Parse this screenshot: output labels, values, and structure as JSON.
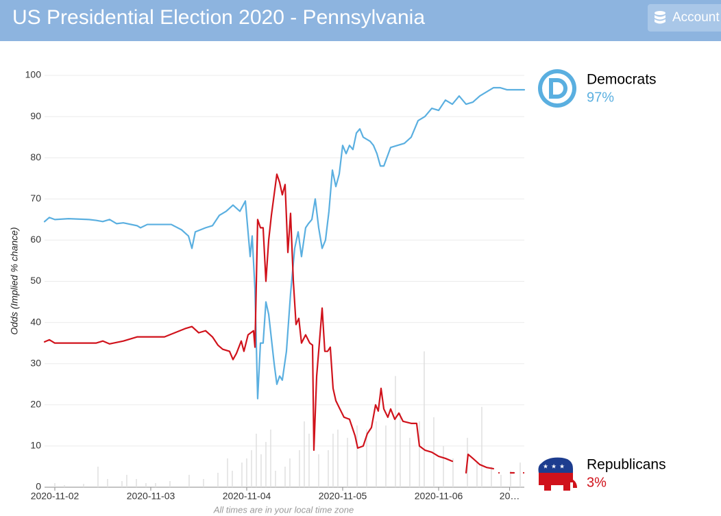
{
  "header": {
    "title": "US Presidential Election 2020 - Pennsylvania",
    "account": "Account"
  },
  "chart_data": {
    "type": "line",
    "ylabel": "Odds (Implied % chance)",
    "note": "All times are in your local time zone",
    "xlim": [
      -0.107,
      4.893
    ],
    "xticks": [
      {
        "value": 0,
        "label": "2020-11-02"
      },
      {
        "value": 1,
        "label": "2020-11-03"
      },
      {
        "value": 2,
        "label": "2020-11-04"
      },
      {
        "value": 3,
        "label": "2020-11-05"
      },
      {
        "value": 4,
        "label": "2020-11-06"
      },
      {
        "value": 4.74,
        "label": "20…"
      }
    ],
    "ylim": [
      0,
      100
    ],
    "yticks": [
      0,
      10,
      20,
      30,
      40,
      50,
      60,
      70,
      80,
      90,
      100
    ],
    "grid": true,
    "series": [
      {
        "name": "Democrats",
        "color": "#5aafe0",
        "current": "97%",
        "x": [
          -0.107,
          -0.057,
          0,
          0.143,
          0.357,
          0.429,
          0.5,
          0.571,
          0.643,
          0.714,
          0.857,
          0.893,
          0.964,
          1.214,
          1.321,
          1.393,
          1.429,
          1.464,
          1.571,
          1.643,
          1.714,
          1.786,
          1.857,
          1.929,
          1.986,
          2.036,
          2.057,
          2.086,
          2.114,
          2.143,
          2.171,
          2.2,
          2.229,
          2.286,
          2.314,
          2.343,
          2.371,
          2.414,
          2.457,
          2.5,
          2.536,
          2.571,
          2.614,
          2.643,
          2.679,
          2.714,
          2.75,
          2.786,
          2.821,
          2.857,
          2.893,
          2.929,
          2.964,
          3,
          3.036,
          3.071,
          3.107,
          3.143,
          3.179,
          3.214,
          3.25,
          3.286,
          3.321,
          3.357,
          3.393,
          3.429,
          3.5,
          3.571,
          3.643,
          3.714,
          3.786,
          3.857,
          3.929,
          4,
          4.071,
          4.143,
          4.214,
          4.286,
          4.357,
          4.429,
          4.5,
          4.571,
          4.643,
          4.714,
          4.893
        ],
        "values": [
          64.5,
          65.5,
          65,
          65.2,
          65,
          64.8,
          64.5,
          65,
          64,
          64.2,
          63.5,
          63,
          63.8,
          63.8,
          62.5,
          61,
          58,
          62,
          63,
          63.5,
          66,
          67,
          68.5,
          67,
          69.5,
          56,
          61,
          48,
          21.5,
          35,
          35,
          45,
          42,
          30,
          25,
          27,
          26,
          33,
          47,
          58,
          62,
          56,
          63,
          64,
          65,
          70,
          63,
          58,
          60,
          67,
          77,
          73,
          76,
          83,
          81,
          83,
          82,
          86,
          87,
          85,
          84.5,
          84,
          83,
          81,
          78,
          78,
          82.5,
          83,
          83.5,
          85,
          89,
          90,
          92,
          91.5,
          94,
          93,
          95,
          93,
          93.5,
          95,
          96,
          97,
          97,
          96.5,
          96.5
        ]
      },
      {
        "name": "Republicans",
        "color": "#d0121b",
        "current": "3%",
        "x": [
          -0.107,
          -0.057,
          0,
          0.143,
          0.429,
          0.5,
          0.571,
          0.714,
          0.857,
          0.929,
          1,
          1.143,
          1.25,
          1.357,
          1.429,
          1.5,
          1.571,
          1.643,
          1.7,
          1.75,
          1.821,
          1.857,
          1.893,
          1.943,
          1.971,
          2.014,
          2.071,
          2.086,
          2.114,
          2.143,
          2.171,
          2.2,
          2.229,
          2.257,
          2.314,
          2.343,
          2.371,
          2.4,
          2.429,
          2.457,
          2.486,
          2.514,
          2.543,
          2.571,
          2.614,
          2.657,
          2.686,
          2.7,
          2.729,
          2.757,
          2.786,
          2.814,
          2.843,
          2.871,
          2.9,
          2.929,
          2.971,
          3.014,
          3.071,
          3.129,
          3.157,
          3.214,
          3.257,
          3.3,
          3.343,
          3.371,
          3.4,
          3.429,
          3.471,
          3.5,
          3.543,
          3.586,
          3.629,
          3.714,
          3.771,
          3.8,
          3.857,
          3.929,
          4,
          4.071,
          4.143,
          4.214,
          4.286,
          4.307,
          4.357,
          4.429,
          4.5,
          4.571,
          4.6,
          4.629,
          4.69,
          4.75,
          4.786,
          4.84,
          4.886
        ],
        "values": [
          35.3,
          35.8,
          35,
          35,
          35,
          35.5,
          34.8,
          35.5,
          36.5,
          36.5,
          36.5,
          36.5,
          37.5,
          38.5,
          39,
          37.5,
          38,
          36.5,
          34.5,
          33.5,
          33,
          31,
          32.5,
          35.5,
          33,
          37,
          38,
          34,
          65,
          63,
          63,
          50,
          60,
          66,
          76,
          74,
          71,
          73.5,
          57,
          66.5,
          50,
          39.5,
          41,
          35,
          37,
          35,
          34.5,
          9,
          27,
          35,
          43.5,
          33,
          33,
          34,
          24,
          21,
          19,
          17,
          16.5,
          12.5,
          9.5,
          10,
          13,
          14.5,
          20,
          18.5,
          24,
          19,
          17,
          19,
          16.5,
          18,
          16,
          15.5,
          15.5,
          10,
          9,
          8.5,
          7.5,
          7,
          6.3,
          null,
          3.5,
          8,
          7,
          5.5,
          4.8,
          4.5,
          null,
          3.5,
          null,
          3.5,
          3.5,
          null,
          3.5
        ]
      }
    ],
    "volume": {
      "color": "#dddddd",
      "x": [
        0,
        0.1,
        0.3,
        0.45,
        0.55,
        0.7,
        0.75,
        0.85,
        0.95,
        1.05,
        1.2,
        1.4,
        1.55,
        1.7,
        1.8,
        1.85,
        1.95,
        2,
        2.05,
        2.1,
        2.15,
        2.2,
        2.25,
        2.3,
        2.4,
        2.45,
        2.55,
        2.6,
        2.65,
        2.75,
        2.85,
        2.9,
        2.95,
        3.05,
        3.15,
        3.25,
        3.35,
        3.45,
        3.55,
        3.6,
        3.7,
        3.8,
        3.85,
        3.95,
        4.05,
        4.15,
        4.3,
        4.4,
        4.45,
        4.55,
        4.65,
        4.75,
        4.85
      ],
      "values": [
        1,
        0.5,
        0.8,
        5,
        2,
        1.5,
        3,
        2,
        1,
        1,
        1.5,
        3,
        2,
        3.5,
        7,
        4,
        6,
        7,
        9,
        13,
        8,
        11,
        14,
        4,
        5,
        7,
        9,
        16,
        13,
        8,
        9,
        13,
        14,
        12,
        15,
        14,
        16,
        15,
        27,
        18,
        12,
        16,
        33,
        17,
        10,
        7,
        12,
        6,
        19.5,
        5,
        3,
        4,
        6
      ]
    }
  }
}
